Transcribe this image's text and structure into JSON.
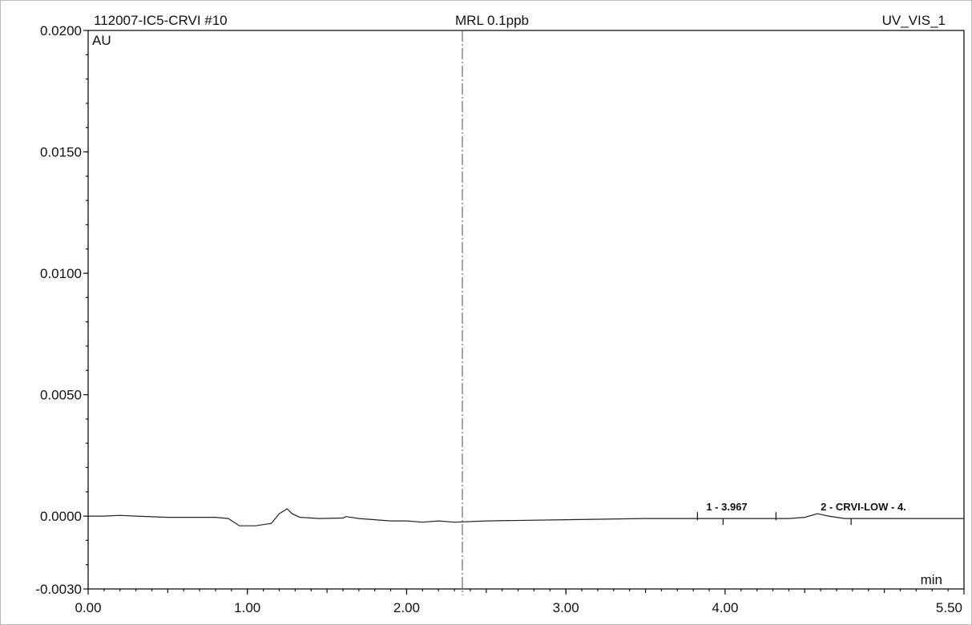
{
  "header": {
    "sample": "112007-IC5-CRVI #10",
    "method": "MRL 0.1ppb",
    "channel": "UV_VIS_1"
  },
  "chart_data": {
    "type": "line",
    "ylabel": "AU",
    "xlabel": "min",
    "xlim": [
      0.0,
      5.5
    ],
    "ylim": [
      -0.003,
      0.02
    ],
    "x_ticks": [
      "0.00",
      "1.00",
      "2.00",
      "3.00",
      "4.00",
      "5.50"
    ],
    "y_ticks": [
      "0.0200",
      "0.0150",
      "0.0100",
      "0.0050",
      "0.0000",
      "-0.0030"
    ],
    "grid": false,
    "series": [
      {
        "x": [
          0.0,
          0.1,
          0.2,
          0.3,
          0.5,
          0.7,
          0.8,
          0.88,
          0.95,
          1.05,
          1.15,
          1.2,
          1.25,
          1.28,
          1.33,
          1.45,
          1.6,
          1.62,
          1.7,
          1.8,
          1.9,
          2.0,
          2.1,
          2.2,
          2.3,
          2.5,
          3.0,
          3.5,
          3.97,
          4.2,
          4.4,
          4.5,
          4.58,
          4.65,
          4.75,
          5.0,
          5.5
        ],
        "y": [
          0.0,
          0.0,
          3e-05,
          0.0,
          -5e-05,
          -5e-05,
          -5e-05,
          -0.0001,
          -0.0004,
          -0.0004,
          -0.0003,
          0.0001,
          0.0003,
          0.0001,
          -5e-05,
          -0.0001,
          -8e-05,
          -2e-05,
          -0.0001,
          -0.00015,
          -0.0002,
          -0.0002,
          -0.00025,
          -0.0002,
          -0.00025,
          -0.0002,
          -0.00015,
          -0.0001,
          -0.0001,
          -0.0001,
          -0.0001,
          -5e-05,
          0.0001,
          0.0,
          -0.0001,
          -0.0001,
          -0.0001
        ]
      }
    ],
    "marker_x": 2.35,
    "peaks": [
      {
        "label": "1 - 3.967",
        "x": 3.967
      },
      {
        "label": "2 - CRVI-LOW - 4.",
        "x": 4.6
      }
    ]
  }
}
